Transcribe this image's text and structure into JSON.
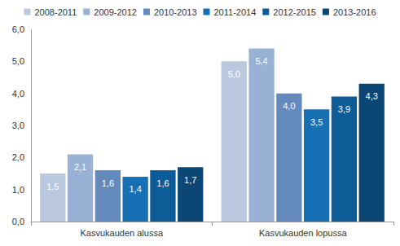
{
  "chart_data": {
    "type": "bar",
    "categories": [
      "Kasvukauden alussa",
      "Kasvukauden lopussa"
    ],
    "series": [
      {
        "name": "2008-2011",
        "color": "#b9c8de",
        "values": [
          1.5,
          5.0
        ],
        "value_labels": [
          "1,5",
          "5,0"
        ]
      },
      {
        "name": "2009-2012",
        "color": "#98b1d4",
        "values": [
          2.1,
          5.4
        ],
        "value_labels": [
          "2,1",
          "5,4"
        ]
      },
      {
        "name": "2010-2013",
        "color": "#6389bd",
        "values": [
          1.6,
          4.0
        ],
        "value_labels": [
          "1,6",
          "4,0"
        ]
      },
      {
        "name": "2011-2014",
        "color": "#1670b3",
        "values": [
          1.4,
          3.5
        ],
        "value_labels": [
          "1,4",
          "3,5"
        ]
      },
      {
        "name": "2012-2015",
        "color": "#0d5c97",
        "values": [
          1.6,
          3.9
        ],
        "value_labels": [
          "1,6",
          "3,9"
        ]
      },
      {
        "name": "2013-2016",
        "color": "#0b4675",
        "values": [
          1.7,
          4.3
        ],
        "value_labels": [
          "1,7",
          "4,3"
        ]
      }
    ],
    "ylim": [
      0,
      6
    ],
    "yticks": [
      {
        "value": 0,
        "label": "0,0"
      },
      {
        "value": 1,
        "label": "1,0"
      },
      {
        "value": 2,
        "label": "2,0"
      },
      {
        "value": 3,
        "label": "3,0"
      },
      {
        "value": 4,
        "label": "4,0"
      },
      {
        "value": 5,
        "label": "5,0"
      },
      {
        "value": 6,
        "label": "6,0"
      }
    ],
    "grid": false,
    "legend": "top",
    "data_labels": true
  }
}
